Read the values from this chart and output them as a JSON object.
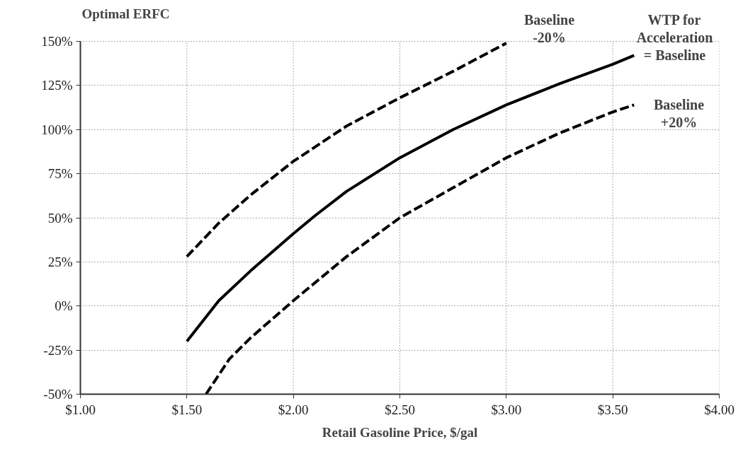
{
  "chart_data": {
    "type": "line",
    "xlabel": "Retail Gasoline Price, $/gal",
    "ylabel": "Optimal ERFC",
    "xlim": [
      1,
      4
    ],
    "ylim": [
      -50,
      150
    ],
    "xticks": [
      {
        "value": 1,
        "label": "$1.00"
      },
      {
        "value": 1.5,
        "label": "$1.50"
      },
      {
        "value": 2,
        "label": "$2.00"
      },
      {
        "value": 2.5,
        "label": "$2.50"
      },
      {
        "value": 3,
        "label": "$3.00"
      },
      {
        "value": 3.5,
        "label": "$3.50"
      },
      {
        "value": 4,
        "label": "$4.00"
      }
    ],
    "yticks": [
      {
        "value": -50,
        "label": "-50%"
      },
      {
        "value": -25,
        "label": "-25%"
      },
      {
        "value": 0,
        "label": "0%"
      },
      {
        "value": 25,
        "label": "25%"
      },
      {
        "value": 50,
        "label": "50%"
      },
      {
        "value": 75,
        "label": "75%"
      },
      {
        "value": 100,
        "label": "100%"
      },
      {
        "value": 125,
        "label": "125%"
      },
      {
        "value": 150,
        "label": "150%"
      }
    ],
    "grid": true,
    "series": [
      {
        "color": "#000000",
        "line_style": "dashed",
        "x": [
          1.5,
          1.65,
          1.8,
          2.0,
          2.25,
          2.5,
          2.75,
          3.0
        ],
        "values": [
          28,
          47,
          63,
          82,
          102,
          118,
          133,
          149
        ]
      },
      {
        "color": "#000000",
        "line_style": "solid",
        "x": [
          1.5,
          1.65,
          1.8,
          2.0,
          2.1,
          2.25,
          2.5,
          2.75,
          3.0,
          3.25,
          3.5,
          3.6
        ],
        "values": [
          -20,
          3,
          20,
          41,
          51,
          65,
          84,
          100,
          114,
          126,
          137,
          142
        ]
      },
      {
        "color": "#000000",
        "line_style": "dashed",
        "x": [
          1.59,
          1.7,
          1.8,
          2.0,
          2.25,
          2.5,
          2.75,
          3.0,
          3.25,
          3.5,
          3.6
        ],
        "values": [
          -50,
          -30,
          -18,
          3,
          28,
          50,
          67,
          84,
          98,
          110,
          114
        ]
      }
    ],
    "annotations": [
      "Baseline\n-20%",
      "WTP for\nAcceleration\n= Baseline",
      "Baseline\n+20%"
    ]
  }
}
